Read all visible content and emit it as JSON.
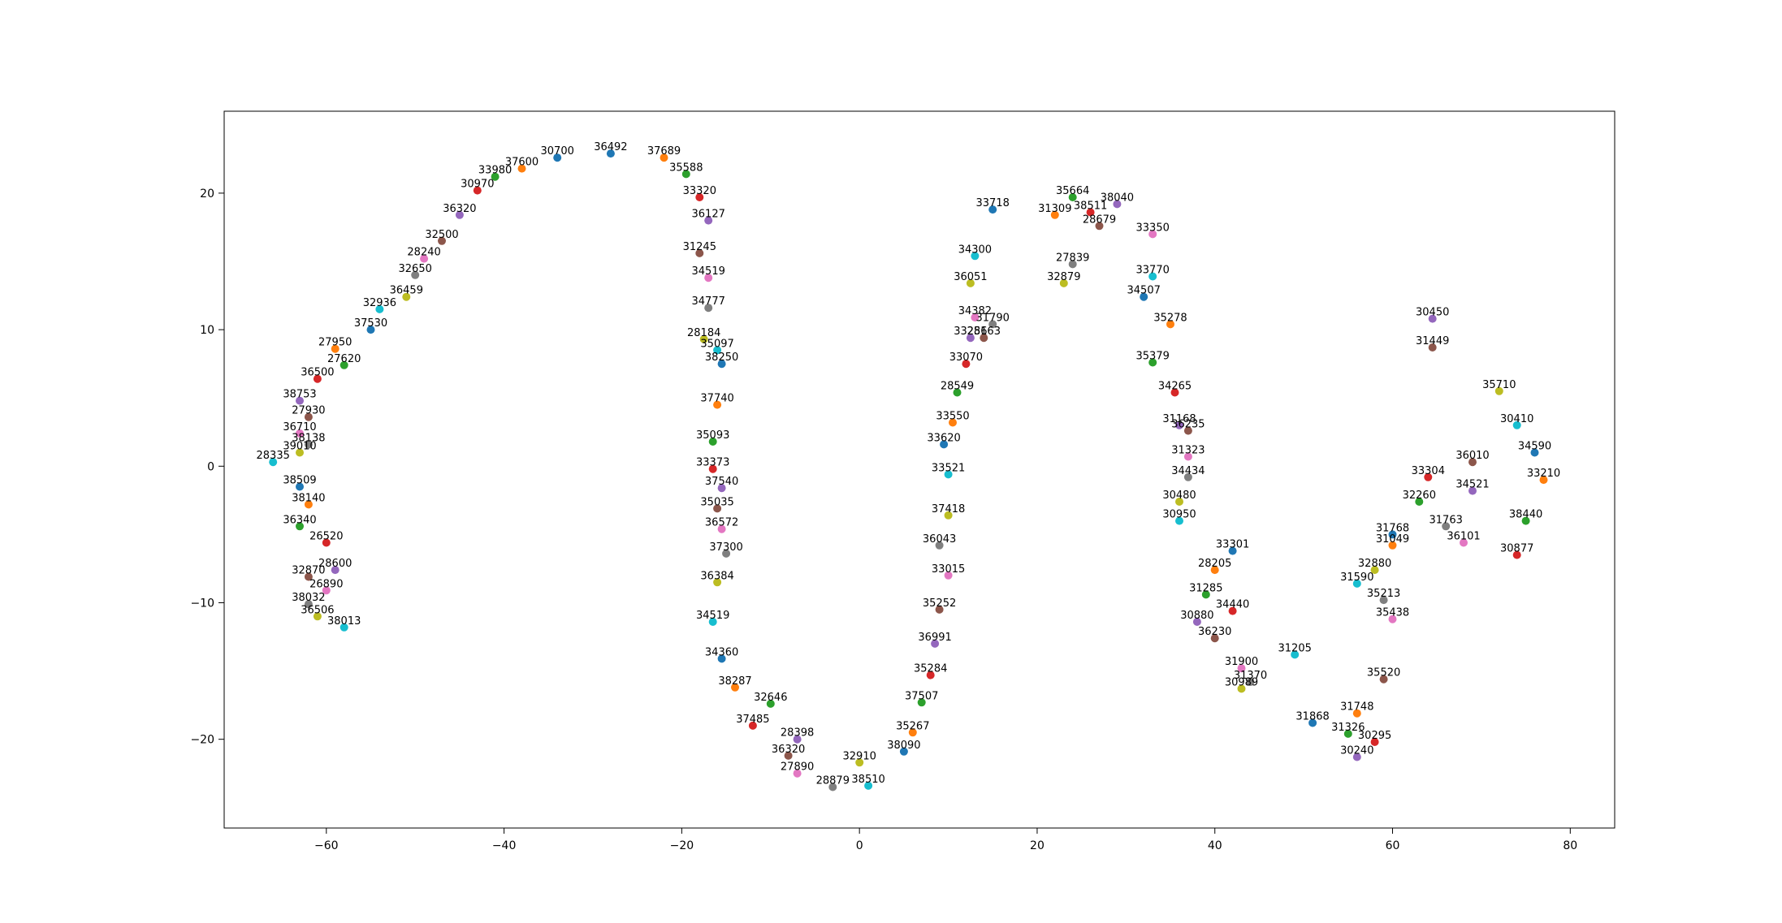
{
  "chart_data": {
    "type": "scatter",
    "title": "",
    "xlabel": "",
    "ylabel": "",
    "xlim": [
      -71.5,
      85
    ],
    "ylim": [
      -26.5,
      26
    ],
    "x_ticks": [
      -60,
      -40,
      -20,
      0,
      20,
      40,
      60,
      80
    ],
    "y_ticks": [
      -20,
      -10,
      0,
      10,
      20
    ],
    "x_tick_labels": [
      "−60",
      "−40",
      "−20",
      "0",
      "20",
      "40",
      "60",
      "80"
    ],
    "y_tick_labels": [
      "−20",
      "−10",
      "0",
      "10",
      "20"
    ],
    "grid": false,
    "legend": "none",
    "point_colors": [
      "#1f77b4",
      "#ff7f0e",
      "#2ca02c",
      "#d62728",
      "#9467bd",
      "#8c564b",
      "#e377c2",
      "#7f7f7f",
      "#bcbd22",
      "#17becf"
    ],
    "points": [
      {
        "x": -34,
        "y": 22.6,
        "label": "30700"
      },
      {
        "x": -38,
        "y": 21.8,
        "label": "37600"
      },
      {
        "x": -41,
        "y": 21.2,
        "label": "33980"
      },
      {
        "x": -43,
        "y": 20.2,
        "label": "30970"
      },
      {
        "x": -45,
        "y": 18.4,
        "label": "36320"
      },
      {
        "x": -47,
        "y": 16.5,
        "label": "32500"
      },
      {
        "x": -49,
        "y": 15.2,
        "label": "28240"
      },
      {
        "x": -50,
        "y": 14.0,
        "label": "32650"
      },
      {
        "x": -51,
        "y": 12.4,
        "label": "36459"
      },
      {
        "x": -54,
        "y": 11.5,
        "label": "32936"
      },
      {
        "x": -55,
        "y": 10.0,
        "label": "37530"
      },
      {
        "x": -59,
        "y": 8.6,
        "label": "27950"
      },
      {
        "x": -58,
        "y": 7.4,
        "label": "27620"
      },
      {
        "x": -61,
        "y": 6.4,
        "label": "36500"
      },
      {
        "x": -63,
        "y": 4.8,
        "label": "38753"
      },
      {
        "x": -62,
        "y": 3.6,
        "label": "27930"
      },
      {
        "x": -63,
        "y": 2.4,
        "label": "36710"
      },
      {
        "x": -62,
        "y": 1.6,
        "label": "38138"
      },
      {
        "x": -63,
        "y": 1.0,
        "label": "39010"
      },
      {
        "x": -66,
        "y": 0.3,
        "label": "28335"
      },
      {
        "x": -63,
        "y": -1.5,
        "label": "38509"
      },
      {
        "x": -62,
        "y": -2.8,
        "label": "38140"
      },
      {
        "x": -63,
        "y": -4.4,
        "label": "36340"
      },
      {
        "x": -60,
        "y": -5.6,
        "label": "26520"
      },
      {
        "x": -59,
        "y": -7.6,
        "label": "28600"
      },
      {
        "x": -62,
        "y": -8.1,
        "label": "32870"
      },
      {
        "x": -60,
        "y": -9.1,
        "label": "26890"
      },
      {
        "x": -62,
        "y": -10.1,
        "label": "38032"
      },
      {
        "x": -61,
        "y": -11.0,
        "label": "36506"
      },
      {
        "x": -58,
        "y": -11.8,
        "label": "38013"
      },
      {
        "x": -28,
        "y": 22.9,
        "label": "36492"
      },
      {
        "x": -22,
        "y": 22.6,
        "label": "37689"
      },
      {
        "x": -19.5,
        "y": 21.4,
        "label": "35588"
      },
      {
        "x": -18,
        "y": 19.7,
        "label": "33320"
      },
      {
        "x": -17,
        "y": 18.0,
        "label": "36127"
      },
      {
        "x": -18,
        "y": 15.6,
        "label": "31245"
      },
      {
        "x": -17,
        "y": 13.8,
        "label": "34519"
      },
      {
        "x": -17,
        "y": 11.6,
        "label": "34777"
      },
      {
        "x": -17.5,
        "y": 9.3,
        "label": "28184"
      },
      {
        "x": -16,
        "y": 8.5,
        "label": "35097"
      },
      {
        "x": -15.5,
        "y": 7.5,
        "label": "38250"
      },
      {
        "x": -16,
        "y": 4.5,
        "label": "37740"
      },
      {
        "x": -16.5,
        "y": 1.8,
        "label": "35093"
      },
      {
        "x": -16.5,
        "y": -0.2,
        "label": "33373"
      },
      {
        "x": -15.5,
        "y": -1.6,
        "label": "37540"
      },
      {
        "x": -16,
        "y": -3.1,
        "label": "35035"
      },
      {
        "x": -15.5,
        "y": -4.6,
        "label": "36572"
      },
      {
        "x": -15,
        "y": -6.4,
        "label": "37300"
      },
      {
        "x": -16,
        "y": -8.5,
        "label": "36384"
      },
      {
        "x": -16.5,
        "y": -11.4,
        "label": "34519"
      },
      {
        "x": -15.5,
        "y": -14.1,
        "label": "34360"
      },
      {
        "x": -14,
        "y": -16.2,
        "label": "38287"
      },
      {
        "x": -10,
        "y": -17.4,
        "label": "32646"
      },
      {
        "x": -12,
        "y": -19.0,
        "label": "37485"
      },
      {
        "x": -7,
        "y": -20.0,
        "label": "28398"
      },
      {
        "x": -8,
        "y": -21.2,
        "label": "36320"
      },
      {
        "x": -7,
        "y": -22.5,
        "label": "27890"
      },
      {
        "x": -3,
        "y": -23.5,
        "label": "28879"
      },
      {
        "x": 0,
        "y": -21.7,
        "label": "32910"
      },
      {
        "x": 1,
        "y": -23.4,
        "label": "38510"
      },
      {
        "x": 5,
        "y": -20.9,
        "label": "38090"
      },
      {
        "x": 6,
        "y": -19.5,
        "label": "35267"
      },
      {
        "x": 7,
        "y": -17.3,
        "label": "37507"
      },
      {
        "x": 8,
        "y": -15.3,
        "label": "35284"
      },
      {
        "x": 8.5,
        "y": -13.0,
        "label": "36991"
      },
      {
        "x": 9,
        "y": -10.5,
        "label": "35252"
      },
      {
        "x": 10,
        "y": -8.0,
        "label": "33015"
      },
      {
        "x": 9,
        "y": -5.8,
        "label": "36043"
      },
      {
        "x": 10,
        "y": -3.6,
        "label": "37418"
      },
      {
        "x": 10,
        "y": -0.6,
        "label": "33521"
      },
      {
        "x": 9.5,
        "y": 1.6,
        "label": "33620"
      },
      {
        "x": 10.5,
        "y": 3.2,
        "label": "33550"
      },
      {
        "x": 11,
        "y": 5.4,
        "label": "28549"
      },
      {
        "x": 12,
        "y": 7.5,
        "label": "33070"
      },
      {
        "x": 12.5,
        "y": 9.4,
        "label": "33256"
      },
      {
        "x": 14,
        "y": 9.4,
        "label": "28163"
      },
      {
        "x": 13,
        "y": 10.9,
        "label": "34382"
      },
      {
        "x": 15,
        "y": 10.4,
        "label": "31790"
      },
      {
        "x": 12.5,
        "y": 13.4,
        "label": "36051"
      },
      {
        "x": 13,
        "y": 15.4,
        "label": "34300"
      },
      {
        "x": 15,
        "y": 18.8,
        "label": "33718"
      },
      {
        "x": 22,
        "y": 18.4,
        "label": "31309"
      },
      {
        "x": 24,
        "y": 19.7,
        "label": "35664"
      },
      {
        "x": 26,
        "y": 18.6,
        "label": "38511"
      },
      {
        "x": 29,
        "y": 19.2,
        "label": "38040"
      },
      {
        "x": 27,
        "y": 17.6,
        "label": "28679"
      },
      {
        "x": 33,
        "y": 17.0,
        "label": "33350"
      },
      {
        "x": 24,
        "y": 14.8,
        "label": "27839"
      },
      {
        "x": 23,
        "y": 13.4,
        "label": "32879"
      },
      {
        "x": 33,
        "y": 13.9,
        "label": "33770"
      },
      {
        "x": 32,
        "y": 12.4,
        "label": "34507"
      },
      {
        "x": 35,
        "y": 10.4,
        "label": "35278"
      },
      {
        "x": 33,
        "y": 7.6,
        "label": "35379"
      },
      {
        "x": 35.5,
        "y": 5.4,
        "label": "34265"
      },
      {
        "x": 36,
        "y": 3.0,
        "label": "31168"
      },
      {
        "x": 37,
        "y": 2.6,
        "label": "36235"
      },
      {
        "x": 37,
        "y": 0.7,
        "label": "31323"
      },
      {
        "x": 37,
        "y": -0.8,
        "label": "34434"
      },
      {
        "x": 36,
        "y": -2.6,
        "label": "30480"
      },
      {
        "x": 36,
        "y": -4.0,
        "label": "30950"
      },
      {
        "x": 42,
        "y": -6.2,
        "label": "33301"
      },
      {
        "x": 40,
        "y": -7.6,
        "label": "28205"
      },
      {
        "x": 39,
        "y": -9.4,
        "label": "31285"
      },
      {
        "x": 42,
        "y": -10.6,
        "label": "34440"
      },
      {
        "x": 38,
        "y": -11.4,
        "label": "30880"
      },
      {
        "x": 40,
        "y": -12.6,
        "label": "36230"
      },
      {
        "x": 43,
        "y": -14.8,
        "label": "31900"
      },
      {
        "x": 44,
        "y": -15.8,
        "label": "31370"
      },
      {
        "x": 43,
        "y": -16.3,
        "label": "30989"
      },
      {
        "x": 49,
        "y": -13.8,
        "label": "31205"
      },
      {
        "x": 51,
        "y": -18.8,
        "label": "31868"
      },
      {
        "x": 56,
        "y": -18.1,
        "label": "31748"
      },
      {
        "x": 55,
        "y": -19.6,
        "label": "31326"
      },
      {
        "x": 58,
        "y": -20.2,
        "label": "30295"
      },
      {
        "x": 56,
        "y": -21.3,
        "label": "30240"
      },
      {
        "x": 59,
        "y": -15.6,
        "label": "35520"
      },
      {
        "x": 60,
        "y": -11.2,
        "label": "35438"
      },
      {
        "x": 59,
        "y": -9.8,
        "label": "35213"
      },
      {
        "x": 58,
        "y": -7.6,
        "label": "32880"
      },
      {
        "x": 56,
        "y": -8.6,
        "label": "31590"
      },
      {
        "x": 60,
        "y": -5.0,
        "label": "31768"
      },
      {
        "x": 60,
        "y": -5.8,
        "label": "31049"
      },
      {
        "x": 63,
        "y": -2.6,
        "label": "32260"
      },
      {
        "x": 64,
        "y": -0.8,
        "label": "33304"
      },
      {
        "x": 69,
        "y": -1.8,
        "label": "34521"
      },
      {
        "x": 69,
        "y": 0.3,
        "label": "36010"
      },
      {
        "x": 68,
        "y": -5.6,
        "label": "36101"
      },
      {
        "x": 66,
        "y": -4.4,
        "label": "31763"
      },
      {
        "x": 72,
        "y": 5.5,
        "label": "35710"
      },
      {
        "x": 74,
        "y": 3.0,
        "label": "30410"
      },
      {
        "x": 76,
        "y": 1.0,
        "label": "34590"
      },
      {
        "x": 77,
        "y": -1.0,
        "label": "33210"
      },
      {
        "x": 75,
        "y": -4.0,
        "label": "38440"
      },
      {
        "x": 74,
        "y": -6.5,
        "label": "30877"
      },
      {
        "x": 64.5,
        "y": 10.8,
        "label": "30450"
      },
      {
        "x": 64.5,
        "y": 8.7,
        "label": "31449"
      }
    ]
  }
}
